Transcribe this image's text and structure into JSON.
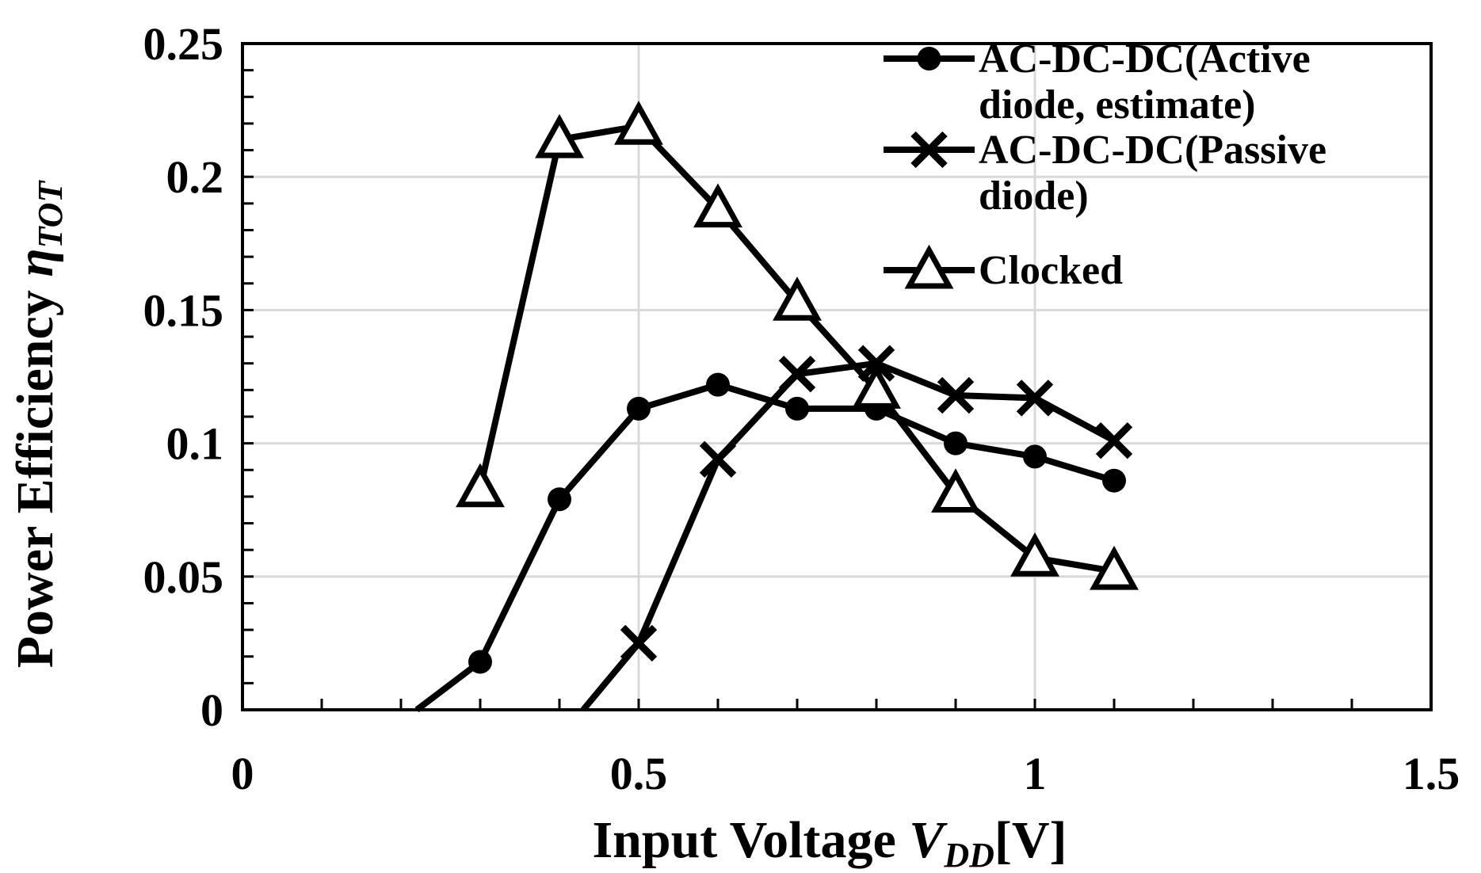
{
  "chart_data": {
    "type": "line",
    "title": "",
    "xlabel": {
      "main": "Input  Voltage ",
      "var": "V",
      "sub": "DD",
      "unit": "[V]"
    },
    "ylabel": {
      "main": "Power Efficiency ",
      "var": "η",
      "sub": "TOT"
    },
    "xlim": [
      0,
      1.5
    ],
    "ylim": [
      0,
      0.25
    ],
    "x_major_ticks": [
      0,
      0.5,
      1,
      1.5
    ],
    "x_tick_labels": [
      "0",
      "0.5",
      "1",
      "1.5"
    ],
    "x_minor_step": 0.1,
    "y_major_ticks": [
      0,
      0.05,
      0.1,
      0.15,
      0.2,
      0.25
    ],
    "y_tick_labels": [
      "0",
      "0.05",
      "0.1",
      "0.15",
      "0.2",
      "0.25"
    ],
    "y_minor_step": 0.01,
    "grid": true,
    "legend_position": "top-right",
    "series": [
      {
        "name": "AC-DC-DC(Active diode, estimate)",
        "legend_lines": [
          "AC-DC-DC(Active",
          "diode, estimate)"
        ],
        "marker": "circle",
        "x": [
          0.22,
          0.3,
          0.4,
          0.5,
          0.6,
          0.7,
          0.8,
          0.9,
          1.0,
          1.1
        ],
        "y": [
          0,
          0.018,
          0.079,
          0.113,
          0.122,
          0.113,
          0.113,
          0.1,
          0.095,
          0.086
        ],
        "marker_mask": [
          false,
          true,
          true,
          true,
          true,
          true,
          true,
          true,
          true,
          true
        ]
      },
      {
        "name": "AC-DC-DC(Passive diode)",
        "legend_lines": [
          "AC-DC-DC(Passive",
          "diode)"
        ],
        "marker": "x",
        "x": [
          0.43,
          0.5,
          0.6,
          0.7,
          0.8,
          0.9,
          1.0,
          1.1
        ],
        "y": [
          0,
          0.025,
          0.094,
          0.126,
          0.13,
          0.118,
          0.117,
          0.101
        ],
        "marker_mask": [
          false,
          true,
          true,
          true,
          true,
          true,
          true,
          true
        ]
      },
      {
        "name": "Clocked",
        "legend_lines": [
          "Clocked"
        ],
        "marker": "triangle",
        "x": [
          0.3,
          0.4,
          0.5,
          0.6,
          0.7,
          0.8,
          0.9,
          1.0,
          1.1
        ],
        "y": [
          0.083,
          0.214,
          0.219,
          0.188,
          0.153,
          0.12,
          0.081,
          0.057,
          0.052
        ],
        "marker_mask": [
          true,
          true,
          true,
          true,
          true,
          true,
          true,
          true,
          true
        ]
      }
    ]
  }
}
